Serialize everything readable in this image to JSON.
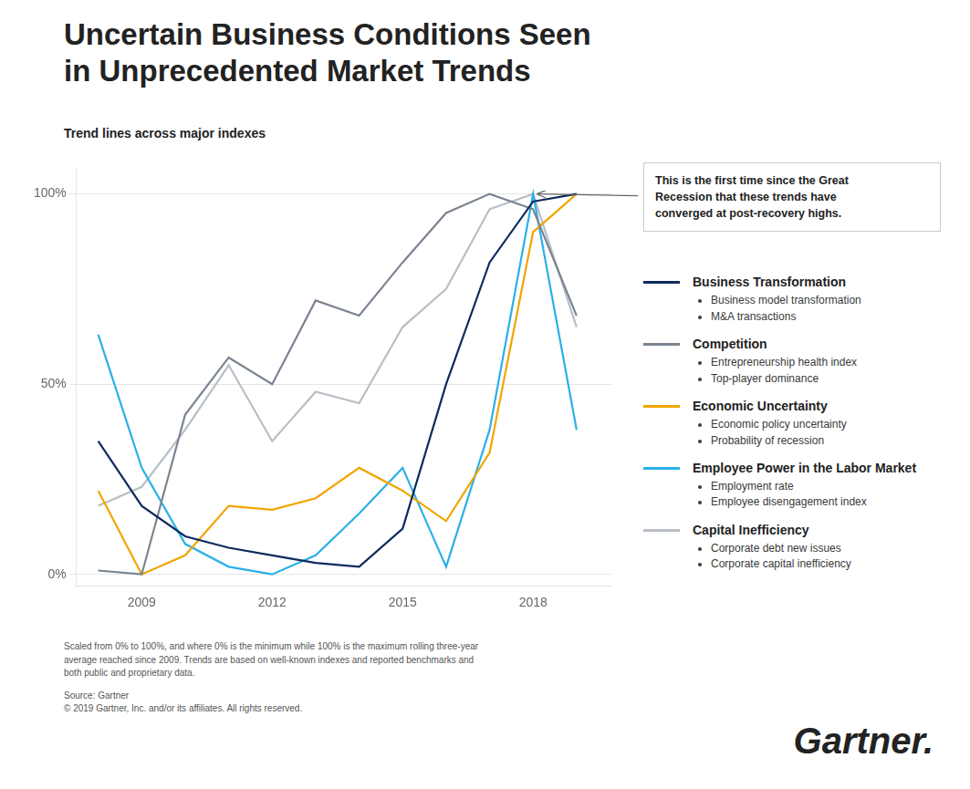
{
  "chart_data": {
    "type": "line",
    "title": "Uncertain Business Conditions Seen\nin Unprecedented Market Trends",
    "subtitle": "Trend lines across major indexes",
    "x": [
      2008,
      2009,
      2010,
      2011,
      2012,
      2013,
      2014,
      2015,
      2016,
      2017,
      2018,
      2019
    ],
    "series": [
      {
        "name": "Business Transformation",
        "color": "#0d2b5e",
        "sub_items": [
          "Business model transformation",
          "M&A transactions"
        ],
        "values": [
          35,
          18,
          10,
          7,
          5,
          3,
          2,
          12,
          50,
          82,
          98,
          100
        ]
      },
      {
        "name": "Competition",
        "color": "#7a8491",
        "sub_items": [
          "Entrepreneurship health index",
          "Top-player dominance"
        ],
        "values": [
          1,
          0,
          42,
          57,
          50,
          72,
          68,
          82,
          95,
          100,
          96,
          68
        ]
      },
      {
        "name": "Economic Uncertainty",
        "color": "#f0a500",
        "sub_items": [
          "Economic policy uncertainty",
          "Probability of recession"
        ],
        "values": [
          22,
          0,
          5,
          18,
          17,
          20,
          28,
          22,
          14,
          32,
          90,
          100
        ]
      },
      {
        "name": "Employee Power in the Labor Market",
        "color": "#2ab0e8",
        "sub_items": [
          "Employment rate",
          "Employee disengagement index"
        ],
        "values": [
          63,
          28,
          8,
          2,
          0,
          5,
          16,
          28,
          2,
          38,
          100,
          38
        ]
      },
      {
        "name": "Capital Inefficiency",
        "color": "#b8bec6",
        "sub_items": [
          "Corporate debt new issues",
          "Corporate capital inefficiency"
        ],
        "values": [
          18,
          23,
          38,
          55,
          35,
          48,
          45,
          65,
          75,
          96,
          100,
          65
        ]
      }
    ],
    "xlim": [
      2007.5,
      2019.8
    ],
    "xticks": [
      2009,
      2012,
      2015,
      2018
    ],
    "ylim": [
      -3,
      107
    ],
    "yticks": [
      {
        "value": 0,
        "label": "0%"
      },
      {
        "value": 50,
        "label": "50%"
      },
      {
        "value": 100,
        "label": "100%"
      }
    ],
    "grid": "y",
    "legend": "right",
    "annotations": [
      {
        "text": "This is the first time since the Great\nRecession that these trends have\nconverged at post-recovery highs.",
        "x": 2018.1,
        "y": 100
      }
    ],
    "footer": [
      "Scaled from 0% to 100%, and where 0% is the minimum while 100% is the maximum rolling three-year\naverage reached since 2009. Trends are based on well-known indexes and reported benchmarks and\nboth public and proprietary data.",
      "Source: Gartner\n© 2019 Gartner, Inc. and/or its affiliates. All rights reserved."
    ],
    "logo": "Gartner."
  }
}
